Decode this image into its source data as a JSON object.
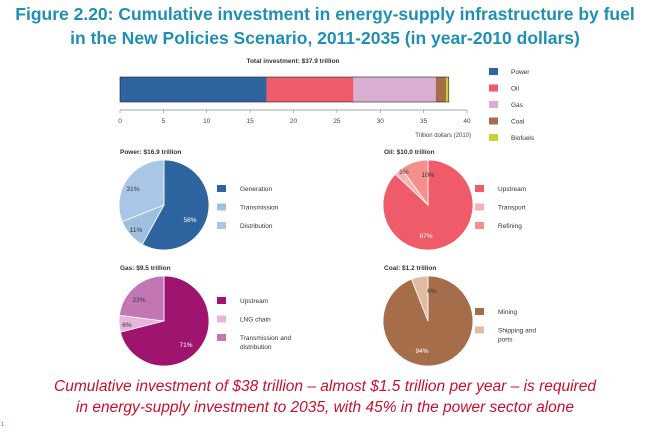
{
  "title_lines": [
    "Figure 2.20: Cumulative investment in energy-supply infrastructure by fuel",
    "in the New Policies Scenario, 2011-2035 (in year-2010 dollars)"
  ],
  "caption_lines": [
    "Cumulative investment of $38 trillion – almost $1.5 trillion per year – is required",
    "in energy-supply investment to 2035, with 45% in the power sector alone"
  ],
  "page_number": "1",
  "colors": {
    "power": "#2e64a0",
    "oil": "#ef5b68",
    "gas": "#d9aed2",
    "coal": "#a66d4a",
    "biofuels": "#c7d334",
    "transmission": "#9ebfe0",
    "distribution": "#a9c6e6",
    "transport": "#f6b2b2",
    "refining": "#f48f8b",
    "gas_upstream": "#9e146e",
    "lng": "#e8b4dc",
    "gas_tnd": "#c277b4",
    "coal_shipping": "#e0bca3"
  },
  "chart_data": [
    {
      "type": "bar",
      "orientation": "horizontal-stacked",
      "title": "Total investment: $37.9 trillion",
      "xlabel": "Trillion dollars (2010)",
      "xlim": [
        0,
        40
      ],
      "xticks": [
        "0",
        "5",
        "10",
        "15",
        "20",
        "25",
        "30",
        "35",
        "40"
      ],
      "series": [
        {
          "name": "Power",
          "value": 16.9
        },
        {
          "name": "Oil",
          "value": 10.0
        },
        {
          "name": "Gas",
          "value": 9.5
        },
        {
          "name": "Coal",
          "value": 1.2
        },
        {
          "name": "Biofuels",
          "value": 0.3
        }
      ],
      "legend_position": "right"
    },
    {
      "type": "pie",
      "title": "Power: $16.9 trillion",
      "slices": [
        {
          "name": "Generation",
          "value": 58,
          "label": "58%"
        },
        {
          "name": "Transmission",
          "value": 11,
          "label": "11%"
        },
        {
          "name": "Distribution",
          "value": 31,
          "label": "31%"
        }
      ]
    },
    {
      "type": "pie",
      "title": "Oil: $10.0 trillion",
      "slices": [
        {
          "name": "Upstream",
          "value": 87,
          "label": "87%"
        },
        {
          "name": "Transport",
          "value": 3,
          "label": "3%"
        },
        {
          "name": "Refining",
          "value": 10,
          "label": "10%"
        }
      ]
    },
    {
      "type": "pie",
      "title": "Gas: $9.5 trillion",
      "slices": [
        {
          "name": "Upstream",
          "value": 71,
          "label": "71%"
        },
        {
          "name": "LNG chain",
          "value": 6,
          "label": "6%"
        },
        {
          "name": "Transmission and distribution",
          "label_lines": [
            "Transmission and",
            "distribution"
          ],
          "value": 23,
          "label": "23%"
        }
      ]
    },
    {
      "type": "pie",
      "title": "Coal: $1.2 trillion",
      "slices": [
        {
          "name": "Mining",
          "value": 94,
          "label": "94%"
        },
        {
          "name": "Shipping and ports",
          "label_lines": [
            "Shipping and",
            "ports"
          ],
          "value": 6,
          "label": "6%"
        }
      ]
    }
  ]
}
